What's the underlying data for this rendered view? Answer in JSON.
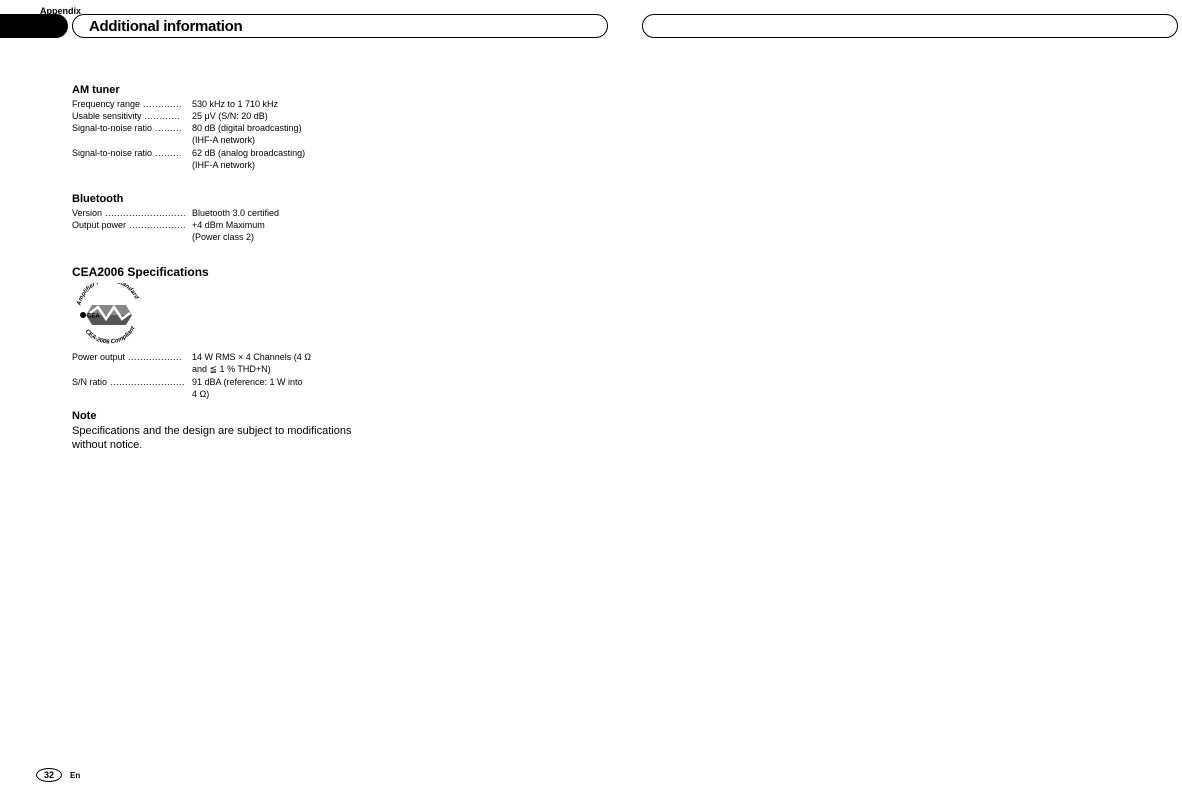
{
  "header": {
    "appendix_label": "Appendix",
    "title": "Additional information"
  },
  "sections": {
    "am_tuner": {
      "title": "AM tuner",
      "rows": [
        {
          "label": "Frequency range",
          "dots": " .............",
          "value": "530 kHz to 1 710 kHz"
        },
        {
          "label": "Usable sensitivity",
          "dots": " ............",
          "value": "25 μV (S/N: 20 dB)"
        },
        {
          "label": "Signal-to-noise ratio",
          "dots": " .........",
          "value": "80 dB (digital broadcasting)",
          "continue": "(IHF-A network)"
        },
        {
          "label": "Signal-to-noise ratio",
          "dots": " .........",
          "value": "62 dB (analog broadcasting)",
          "continue": "(IHF-A network)"
        }
      ]
    },
    "bluetooth": {
      "title": "Bluetooth",
      "rows": [
        {
          "label": "Version",
          "dots": " ...........................",
          "value": "Bluetooth 3.0 certified"
        },
        {
          "label": "Output power",
          "dots": " ...................",
          "value": "+4 dBm Maximum",
          "continue": "(Power class 2)"
        }
      ]
    },
    "cea": {
      "title": "CEA2006 Specifications",
      "logo_text_top": "Amplifier Power Standard",
      "logo_text_bottom": "CEA-2006 Compliant",
      "logo_center": "CEA",
      "rows": [
        {
          "label": "Power output",
          "dots": " ..................",
          "value": "14 W RMS × 4 Channels (4 Ω",
          "continue": "and ≦ 1 % THD+N)"
        },
        {
          "label": "S/N ratio",
          "dots": " .........................",
          "value": "91 dBA (reference: 1 W into",
          "continue": "4 Ω)"
        }
      ]
    },
    "note": {
      "title": "Note",
      "text": "Specifications and the design are subject to modifications without notice."
    }
  },
  "footer": {
    "page_number": "32",
    "language": "En"
  },
  "colors": {
    "text": "#000000",
    "background": "#ffffff",
    "logo_gray": "#888888",
    "logo_dark": "#555555"
  }
}
